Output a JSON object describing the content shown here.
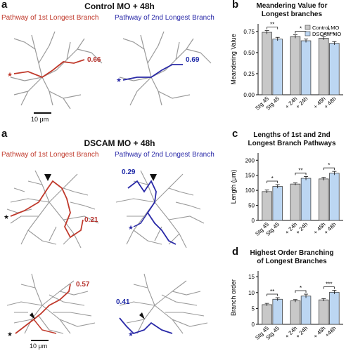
{
  "panel_a": {
    "letter": "a",
    "control_title": "Control MO + 48h",
    "dscam_title": "DSCAM MO + 48h",
    "path_label_1st": "Pathway of 1st Longest Branch",
    "path_label_2nd": "Pathway of 2nd Longest Branch",
    "control_values": {
      "first": "0.66",
      "second": "0.69"
    },
    "dscam_values_row1": {
      "first": "0.21",
      "second": "0.29"
    },
    "dscam_values_row2": {
      "first": "0.57",
      "second": "0.41"
    },
    "scale_label": "10 μm",
    "colors": {
      "red": "#c0392b",
      "blue": "#2a2aa8",
      "neuron": "#9a9a9a"
    }
  },
  "panel_b": {
    "letter": "b"
  },
  "panel_c": {
    "letter": "c"
  },
  "panel_d": {
    "letter": "d"
  },
  "chart_data": [
    {
      "type": "bar",
      "title": "Meandering Value for\nLongest branches",
      "ylabel": "Meandering Value",
      "ylim": [
        0,
        0.75
      ],
      "yticks": [
        "0.00",
        "0.25",
        "0.50",
        "0.75"
      ],
      "categories": [
        "Stg 45",
        "Stg 45",
        "+ 24h",
        "+ 24h",
        "+ 48h",
        "+ 48h"
      ],
      "legend": [
        "Control MO",
        "DSCAM MO"
      ],
      "legend_position": "top-right",
      "values": [
        0.74,
        0.66,
        0.69,
        0.64,
        0.67,
        0.61
      ],
      "errors": [
        0.02,
        0.02,
        0.02,
        0.02,
        0.02,
        0.02
      ],
      "groups": [
        "control",
        "dscam",
        "control",
        "dscam",
        "control",
        "dscam"
      ],
      "significance": [
        "**",
        "*",
        "*"
      ]
    },
    {
      "type": "bar",
      "title": "Lengths of 1st and 2nd\nLongest Branch Pathways",
      "ylabel": "Length (μm)",
      "ylim": [
        0,
        200
      ],
      "yticks": [
        "0",
        "50",
        "100",
        "150",
        "200"
      ],
      "categories": [
        "Stg 45",
        "Stg 45",
        "+ 24h",
        "+ 24h",
        "+ 48h",
        "+ 48h"
      ],
      "values": [
        96,
        113,
        121,
        140,
        138,
        157
      ],
      "errors": [
        5,
        6,
        4,
        6,
        5,
        6
      ],
      "groups": [
        "control",
        "dscam",
        "control",
        "dscam",
        "control",
        "dscam"
      ],
      "significance": [
        "*",
        "**",
        "*"
      ]
    },
    {
      "type": "bar",
      "title": "Highest Order Branching\nof Longest Branches",
      "ylabel": "Branch order",
      "ylim": [
        0,
        15
      ],
      "yticks": [
        "0",
        "5",
        "10",
        "15"
      ],
      "categories": [
        "Stg 45",
        "Stg 45",
        "+ 24h",
        "+ 24h",
        "+ 48h",
        "+48h"
      ],
      "values": [
        6.2,
        7.9,
        7.4,
        8.9,
        7.7,
        10.1
      ],
      "errors": [
        0.4,
        0.5,
        0.4,
        0.6,
        0.4,
        0.6
      ],
      "groups": [
        "control",
        "dscam",
        "control",
        "dscam",
        "control",
        "dscam"
      ],
      "significance": [
        "**",
        "*",
        "***"
      ]
    }
  ],
  "colors": {
    "control_bar": "#c8c8c8",
    "dscam_bar": "#bcd6f2",
    "bar_edge": "#444444"
  }
}
